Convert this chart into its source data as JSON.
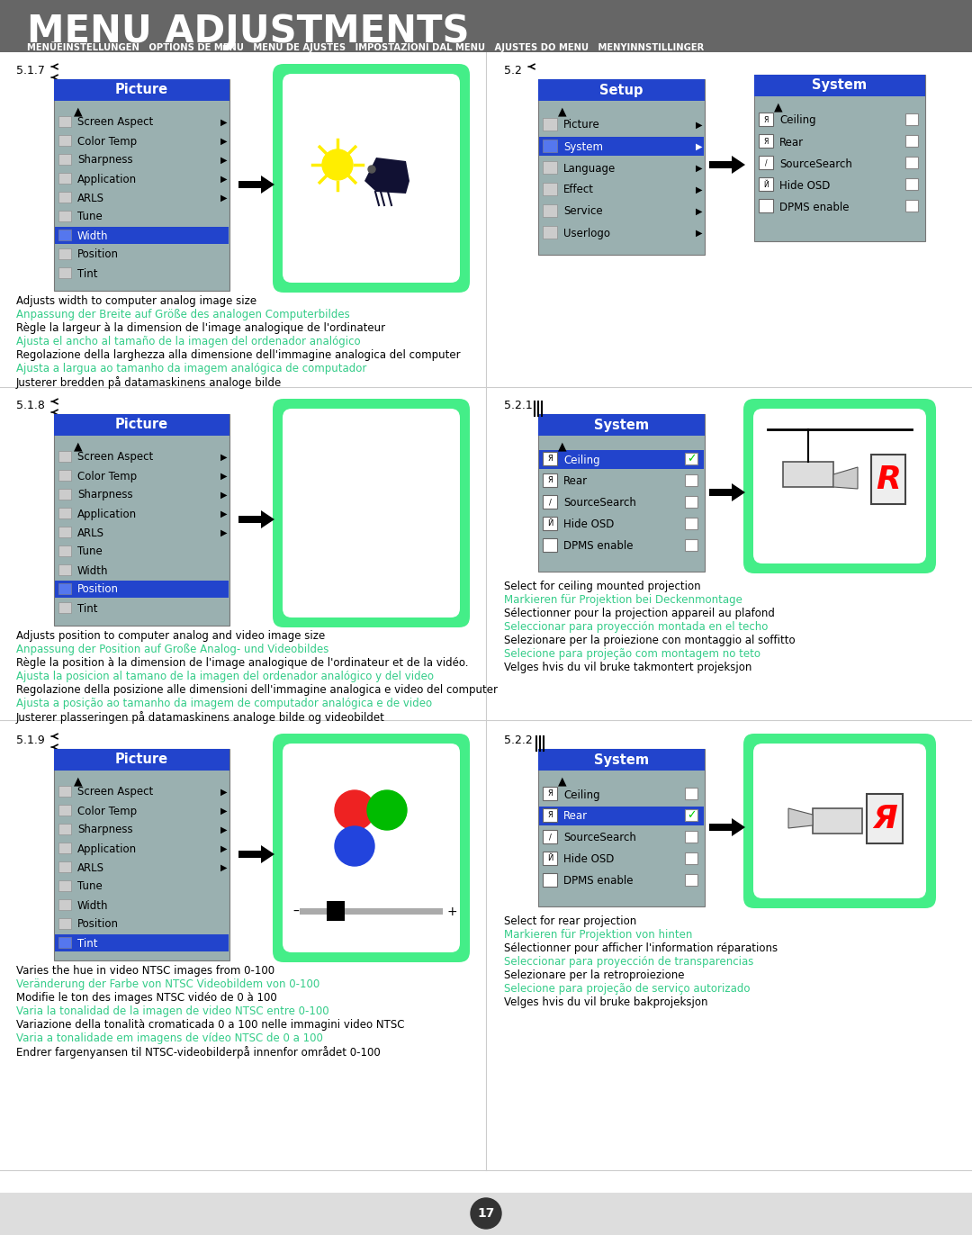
{
  "title": "MENU ADJUSTMENTS",
  "subtitle": "MENÜEINSTELLUNGEN   OPTIONS DE MENU   MENÚ DE AJUSTES   IMPOSTAZIONI DAL MENU   AJUSTES DO MENU   MENYINNSTILLINGER",
  "header_bg": "#666666",
  "content_bg": "#ffffff",
  "page_number": "17",
  "menu_bg": "#9ab0b0",
  "menu_blue": "#2244cc",
  "setup_blue": "#2244cc",
  "system_blue": "#2244cc",
  "highlight_blue": "#2244cc",
  "green_border": "#44ee88",
  "divider_color": "#cccccc",
  "section_517_desc": [
    {
      "text": "Adjusts width to computer analog image size",
      "color": "#000000"
    },
    {
      "text": "Anpassung der Breite auf Größe des analogen Computerbildes",
      "color": "#33cc88"
    },
    {
      "text": "Règle la largeur à la dimension de l'image analogique de l'ordinateur",
      "color": "#000000"
    },
    {
      "text": "Ajusta el ancho al tamaño de la imagen del ordenador analógico",
      "color": "#33cc88"
    },
    {
      "text": "Regolazione della larghezza alla dimensione dell'immagine analogica del computer",
      "color": "#000000"
    },
    {
      "text": "Ajusta a largua ao tamanho da imagem analógica de computador",
      "color": "#33cc88"
    },
    {
      "text": "Justerer bredden på datamaskinens analoge bilde",
      "color": "#000000"
    }
  ],
  "section_518_desc": [
    {
      "text": "Adjusts position to computer analog and video image size",
      "color": "#000000"
    },
    {
      "text": "Anpassung der Position auf Große Analog- und Videobildes",
      "color": "#33cc88"
    },
    {
      "text": "Règle la position à la dimension de l'image analogique de l'ordinateur et de la vidéo.",
      "color": "#000000"
    },
    {
      "text": "Ajusta la posicion al tamano de la imagen del ordenador analógico y del video",
      "color": "#33cc88"
    },
    {
      "text": "Regolazione della posizione alle dimensioni dell'immagine analogica e video del computer",
      "color": "#000000"
    },
    {
      "text": "Ajusta a posição ao tamanho da imagem de computador analógica e de video",
      "color": "#33cc88"
    },
    {
      "text": "Justerer plasseringen på datamaskinens analoge bilde og videobildet",
      "color": "#000000"
    }
  ],
  "section_519_desc": [
    {
      "text": "Varies the hue in video NTSC images from 0-100",
      "color": "#000000"
    },
    {
      "text": "Veränderung der Farbe von NTSC Videobildem von 0-100",
      "color": "#33cc88"
    },
    {
      "text": "Modifie le ton des images NTSC vidéo de 0 à 100",
      "color": "#000000"
    },
    {
      "text": "Varia la tonalidad de la imagen de video NTSC entre 0-100",
      "color": "#33cc88"
    },
    {
      "text": "Variazione della tonalità cromaticada 0 a 100 nelle immagini video NTSC",
      "color": "#000000"
    },
    {
      "text": "Varia a tonalidade em imagens de vídeo NTSC de 0 a 100",
      "color": "#33cc88"
    },
    {
      "text": "Endrer fargenyansen til NTSC-videobilderpå innenfor området 0-100",
      "color": "#000000"
    }
  ],
  "section_521_desc": [
    {
      "text": "Select for ceiling mounted projection",
      "color": "#000000"
    },
    {
      "text": "Markieren für Projektion bei Deckenmontage",
      "color": "#33cc88"
    },
    {
      "text": "Sélectionner pour la projection appareil au plafond",
      "color": "#000000"
    },
    {
      "text": "Seleccionar para proyección montada en el techo",
      "color": "#33cc88"
    },
    {
      "text": "Selezionare per la proiezione con montaggio al soffitto",
      "color": "#000000"
    },
    {
      "text": "Selecione para projeção com montagem no teto",
      "color": "#33cc88"
    },
    {
      "text": "Velges hvis du vil bruke takmontert projeksjon",
      "color": "#000000"
    }
  ],
  "section_522_desc": [
    {
      "text": "Select for rear projection",
      "color": "#000000"
    },
    {
      "text": "Markieren für Projektion von hinten",
      "color": "#33cc88"
    },
    {
      "text": "Sélectionner pour afficher l'information réparations",
      "color": "#000000"
    },
    {
      "text": "Seleccionar para proyección de transparencias",
      "color": "#33cc88"
    },
    {
      "text": "Selezionare per la retroproiezione",
      "color": "#000000"
    },
    {
      "text": "Selecione para projeção de serviço autorizado",
      "color": "#33cc88"
    },
    {
      "text": "Velges hvis du vil bruke bakprojeksjon",
      "color": "#000000"
    }
  ]
}
